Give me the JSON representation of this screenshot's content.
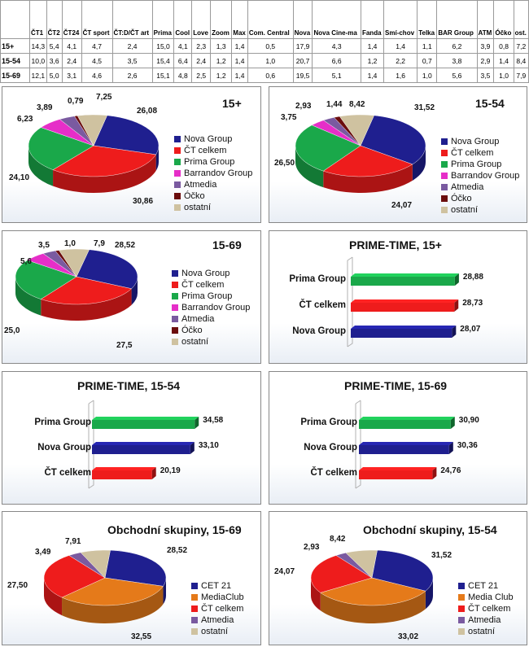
{
  "table": {
    "columns": [
      "ČT1",
      "ČT2",
      "ČT24",
      "ČT sport",
      "ČT:D/ČT art",
      "Prima",
      "Cool",
      "Love",
      "Zoom",
      "Max",
      "Com. Central",
      "Nova",
      "Nova Cine-ma",
      "Fanda",
      "Smí-chov",
      "Telka",
      "BAR Group",
      "ATM",
      "Óčko",
      "ost."
    ],
    "rows": [
      {
        "label": "15+",
        "values": [
          "14,3",
          "5,4",
          "4,1",
          "4,7",
          "2,4",
          "15,0",
          "4,1",
          "2,3",
          "1,3",
          "1,4",
          "0,5",
          "17,9",
          "4,3",
          "1,4",
          "1,4",
          "1,1",
          "6,2",
          "3,9",
          "0,8",
          "7,2"
        ]
      },
      {
        "label": "15-54",
        "values": [
          "10,0",
          "3,6",
          "2,4",
          "4,5",
          "3,5",
          "15,4",
          "6,4",
          "2,4",
          "1,2",
          "1,4",
          "1,0",
          "20,7",
          "6,6",
          "1,2",
          "2,2",
          "0,7",
          "3,8",
          "2,9",
          "1,4",
          "8,4"
        ]
      },
      {
        "label": "15-69",
        "values": [
          "12,1",
          "5,0",
          "3,1",
          "4,6",
          "2,6",
          "15,1",
          "4,8",
          "2,5",
          "1,2",
          "1,4",
          "0,6",
          "19,5",
          "5,1",
          "1,4",
          "1,6",
          "1,0",
          "5,6",
          "3,5",
          "1,0",
          "7,9"
        ]
      }
    ]
  },
  "colors": {
    "Nova Group": "#1f1f8f",
    "ČT celkem": "#ee1c1c",
    "Prima Group": "#1aa84a",
    "Barrandov Group": "#e62ec8",
    "Atmedia": "#7a5aa0",
    "Óčko": "#6b0d0d",
    "ostatní": "#cfc2a0",
    "CET 21": "#1f1f8f",
    "MediaClub": "#e57a1a"
  },
  "panels": {
    "p1": {
      "title": "15+",
      "slices": [
        [
          "Nova Group",
          "26,08"
        ],
        [
          "ČT celkem",
          "30,86"
        ],
        [
          "Prima Group",
          "24,10"
        ],
        [
          "Barrandov Group",
          "6,23"
        ],
        [
          "Atmedia",
          "3,89"
        ],
        [
          "Óčko",
          "0,79"
        ],
        [
          "ostatní",
          "7,25"
        ]
      ]
    },
    "p2": {
      "title": "15-54",
      "slices": [
        [
          "Nova Group",
          "31,52"
        ],
        [
          "ČT celkem",
          "24,07"
        ],
        [
          "Prima Group",
          "26,50"
        ],
        [
          "Barrandov Group",
          "3,75"
        ],
        [
          "Atmedia",
          "2,93"
        ],
        [
          "Óčko",
          "1,44"
        ],
        [
          "ostatní",
          "8,42"
        ]
      ]
    },
    "p3": {
      "title": "15-69",
      "slices": [
        [
          "Nova Group",
          "28,52"
        ],
        [
          "ČT celkem",
          "27,5"
        ],
        [
          "Prima Group",
          "25,0"
        ],
        [
          "Barrandov Group",
          "5,6"
        ],
        [
          "Atmedia",
          "3,5"
        ],
        [
          "Óčko",
          "1,0"
        ],
        [
          "ostatní",
          "7,9"
        ]
      ]
    },
    "b1": {
      "title": "PRIME-TIME, 15+",
      "bars": [
        [
          "Prima Group",
          "28,88"
        ],
        [
          "ČT celkem",
          "28,73"
        ],
        [
          "Nova Group",
          "28,07"
        ]
      ]
    },
    "b2": {
      "title": "PRIME-TIME, 15-54",
      "bars": [
        [
          "Prima Group",
          "34,58"
        ],
        [
          "Nova Group",
          "33,10"
        ],
        [
          "ČT celkem",
          "20,19"
        ]
      ]
    },
    "b3": {
      "title": "PRIME-TIME, 15-69",
      "bars": [
        [
          "Prima Group",
          "30,90"
        ],
        [
          "Nova Group",
          "30,36"
        ],
        [
          "ČT celkem",
          "24,76"
        ]
      ]
    },
    "p4": {
      "title": "Obchodní skupiny, 15-69",
      "slices": [
        [
          "CET 21",
          "28,52"
        ],
        [
          "MediaClub",
          "32,55"
        ],
        [
          "ČT celkem",
          "27,50"
        ],
        [
          "Atmedia",
          "3,49"
        ],
        [
          "ostatní",
          "7,91"
        ]
      ]
    },
    "p5": {
      "title": "Obchodní skupiny, 15-54",
      "slices": [
        [
          "CET 21",
          "31,52"
        ],
        [
          "Media Club",
          "33,02"
        ],
        [
          "ČT celkem",
          "24,07"
        ],
        [
          "Atmedia",
          "2,93"
        ],
        [
          "ostatní",
          "8,42"
        ]
      ]
    }
  },
  "chart_data": [
    {
      "type": "pie",
      "title": "15+",
      "categories": [
        "Nova Group",
        "ČT celkem",
        "Prima Group",
        "Barrandov Group",
        "Atmedia",
        "Óčko",
        "ostatní"
      ],
      "values": [
        26.08,
        30.86,
        24.1,
        6.23,
        3.89,
        0.79,
        7.25
      ],
      "legend": "right"
    },
    {
      "type": "pie",
      "title": "15-54",
      "categories": [
        "Nova Group",
        "ČT celkem",
        "Prima Group",
        "Barrandov Group",
        "Atmedia",
        "Óčko",
        "ostatní"
      ],
      "values": [
        31.52,
        24.07,
        26.5,
        3.75,
        2.93,
        1.44,
        8.42
      ],
      "legend": "right"
    },
    {
      "type": "pie",
      "title": "15-69",
      "categories": [
        "Nova Group",
        "ČT celkem",
        "Prima Group",
        "Barrandov Group",
        "Atmedia",
        "Óčko",
        "ostatní"
      ],
      "values": [
        28.52,
        27.5,
        25.0,
        5.6,
        3.5,
        1.0,
        7.9
      ],
      "legend": "right"
    },
    {
      "type": "bar",
      "title": "PRIME-TIME, 15+",
      "categories": [
        "Prima Group",
        "ČT celkem",
        "Nova Group"
      ],
      "values": [
        28.88,
        28.73,
        28.07
      ],
      "orientation": "horizontal"
    },
    {
      "type": "bar",
      "title": "PRIME-TIME, 15-54",
      "categories": [
        "Prima Group",
        "Nova Group",
        "ČT celkem"
      ],
      "values": [
        34.58,
        33.1,
        20.19
      ],
      "orientation": "horizontal"
    },
    {
      "type": "bar",
      "title": "PRIME-TIME, 15-69",
      "categories": [
        "Prima Group",
        "Nova Group",
        "ČT celkem"
      ],
      "values": [
        30.9,
        30.36,
        24.76
      ],
      "orientation": "horizontal"
    },
    {
      "type": "pie",
      "title": "Obchodní skupiny, 15-69",
      "categories": [
        "CET 21",
        "MediaClub",
        "ČT celkem",
        "Atmedia",
        "ostatní"
      ],
      "values": [
        28.52,
        32.55,
        27.5,
        3.49,
        7.91
      ],
      "legend": "right"
    },
    {
      "type": "pie",
      "title": "Obchodní skupiny, 15-54",
      "categories": [
        "CET 21",
        "Media Club",
        "ČT celkem",
        "Atmedia",
        "ostatní"
      ],
      "values": [
        31.52,
        33.02,
        24.07,
        2.93,
        8.42
      ],
      "legend": "right"
    }
  ]
}
